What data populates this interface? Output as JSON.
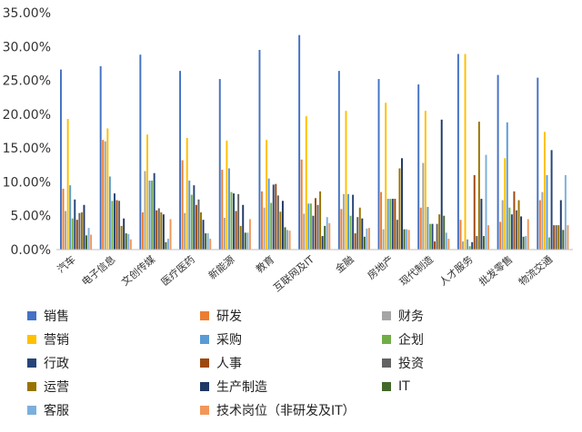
{
  "chart_data": {
    "type": "bar",
    "title": "",
    "xlabel": "",
    "ylabel": "",
    "ylim": [
      0,
      35
    ],
    "y_ticks": [
      "0.00%",
      "5.00%",
      "10.00%",
      "15.00%",
      "20.00%",
      "25.00%",
      "30.00%",
      "35.00%"
    ],
    "grid": false,
    "legend_position": "bottom",
    "categories": [
      "汽车",
      "电子信息",
      "文创传媒",
      "医疗医药",
      "新能源",
      "教育",
      "互联网及IT",
      "金融",
      "房地产",
      "现代制造",
      "人才服务",
      "批发零售",
      "物流交通"
    ],
    "series": [
      {
        "name": "销售",
        "color": "#4472C4",
        "values": [
          26.6,
          27.1,
          28.8,
          26.4,
          25.2,
          29.5,
          31.7,
          26.4,
          25.2,
          24.4,
          28.9,
          25.8,
          25.4
        ]
      },
      {
        "name": "研发",
        "color": "#ED7D31",
        "values": [
          9.0,
          16.2,
          5.5,
          13.2,
          11.8,
          8.6,
          13.3,
          6.0,
          8.5,
          6.2,
          4.4,
          4.1,
          7.3
        ]
      },
      {
        "name": "财务",
        "color": "#A5A5A5",
        "values": [
          5.7,
          16.0,
          11.6,
          5.4,
          4.7,
          6.2,
          5.3,
          8.2,
          3.0,
          12.8,
          1.2,
          7.3,
          8.5
        ]
      },
      {
        "name": "营销",
        "color": "#FFC000",
        "values": [
          19.3,
          17.9,
          17.0,
          16.5,
          16.1,
          16.2,
          19.7,
          20.5,
          21.7,
          20.5,
          28.9,
          13.5,
          17.4
        ]
      },
      {
        "name": "采购",
        "color": "#5B9BD5",
        "values": [
          9.5,
          10.8,
          10.2,
          10.2,
          12.0,
          10.5,
          6.8,
          8.2,
          7.5,
          6.3,
          1.5,
          18.8,
          11.0
        ]
      },
      {
        "name": "企划",
        "color": "#70AD47",
        "values": [
          4.6,
          7.2,
          10.2,
          8.1,
          8.5,
          6.9,
          6.8,
          5.0,
          7.5,
          3.8,
          0.5,
          6.2,
          1.8
        ]
      },
      {
        "name": "行政",
        "color": "#264478",
        "values": [
          7.4,
          8.3,
          11.3,
          9.5,
          8.3,
          9.6,
          5.0,
          8.1,
          7.5,
          3.8,
          1.1,
          5.2,
          14.7
        ]
      },
      {
        "name": "人事",
        "color": "#9E480E",
        "values": [
          4.4,
          7.3,
          5.8,
          6.6,
          5.7,
          9.7,
          7.6,
          2.4,
          7.5,
          1.2,
          11.0,
          8.6,
          3.6
        ]
      },
      {
        "name": "投资",
        "color": "#636363",
        "values": [
          5.4,
          7.2,
          6.1,
          7.4,
          8.2,
          8.0,
          6.6,
          4.8,
          4.4,
          3.8,
          2.0,
          5.8,
          3.6
        ]
      },
      {
        "name": "运营",
        "color": "#997300",
        "values": [
          5.5,
          3.5,
          5.5,
          5.5,
          3.5,
          5.6,
          8.6,
          6.2,
          12.0,
          5.2,
          18.9,
          7.3,
          3.6
        ]
      },
      {
        "name": "生产制造",
        "color": "#203864",
        "values": [
          6.6,
          4.6,
          5.2,
          4.4,
          6.6,
          7.2,
          2.0,
          4.6,
          13.5,
          19.2,
          7.5,
          4.9,
          7.3
        ]
      },
      {
        "name": "IT",
        "color": "#43682B",
        "values": [
          2.1,
          2.4,
          1.1,
          2.4,
          2.5,
          3.3,
          3.5,
          1.9,
          3.0,
          5.0,
          2.0,
          1.9,
          2.9
        ]
      },
      {
        "name": "客服",
        "color": "#7CAFDD",
        "values": [
          3.2,
          2.3,
          1.6,
          2.4,
          2.5,
          2.9,
          4.8,
          3.1,
          3.0,
          2.5,
          14.0,
          2.0,
          11.0
        ]
      },
      {
        "name": "技术岗位（非研发及IT）",
        "color": "#F1975A",
        "values": [
          2.2,
          1.5,
          4.5,
          1.6,
          4.5,
          2.8,
          3.9,
          3.2,
          2.9,
          1.6,
          3.6,
          4.5,
          3.6
        ]
      }
    ]
  }
}
